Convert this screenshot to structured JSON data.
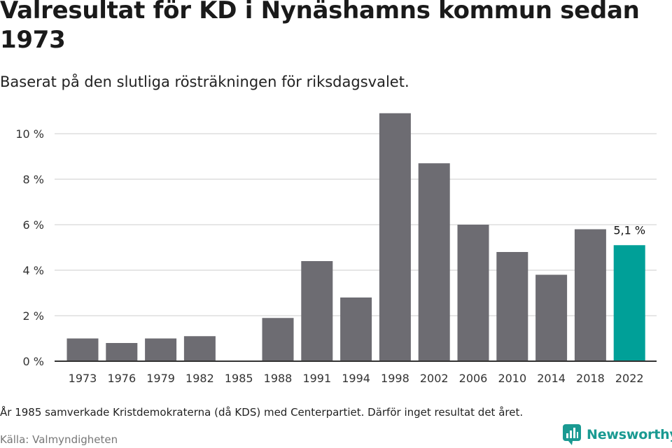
{
  "title": "Valresultat för KD i Nynäshamns kommun sedan 1973",
  "subtitle": "Baserat på den slutliga rösträkningen för riksdagsvalet.",
  "note": "År 1985 samverkade Kristdemokraterna (då KDS) med Centerpartiet. Därför inget resultat det året.",
  "source": "Källa: Valmyndigheten",
  "brand": {
    "name": "Newsworthy",
    "icon": "newsworthy-logo-icon"
  },
  "colors": {
    "bar": "#6d6c72",
    "highlight": "#00a098",
    "grid": "#dddddd",
    "axis": "#333333"
  },
  "chart_data": {
    "type": "bar",
    "title": "Valresultat för KD i Nynäshamns kommun sedan 1973",
    "xlabel": "",
    "ylabel": "",
    "categories": [
      "1973",
      "1976",
      "1979",
      "1982",
      "1985",
      "1988",
      "1991",
      "1994",
      "1998",
      "2002",
      "2006",
      "2010",
      "2014",
      "2018",
      "2022"
    ],
    "values": [
      1.0,
      0.8,
      1.0,
      1.1,
      null,
      1.9,
      4.4,
      2.8,
      10.9,
      8.7,
      6.0,
      4.8,
      3.8,
      5.8,
      5.1
    ],
    "highlight_index": 14,
    "highlight_label": "5,1 %",
    "ylim": [
      0,
      11
    ],
    "yticks": [
      0,
      2,
      4,
      6,
      8,
      10
    ],
    "ytick_labels": [
      "0 %",
      "2 %",
      "4 %",
      "6 %",
      "8 %",
      "10 %"
    ],
    "grid": true
  }
}
